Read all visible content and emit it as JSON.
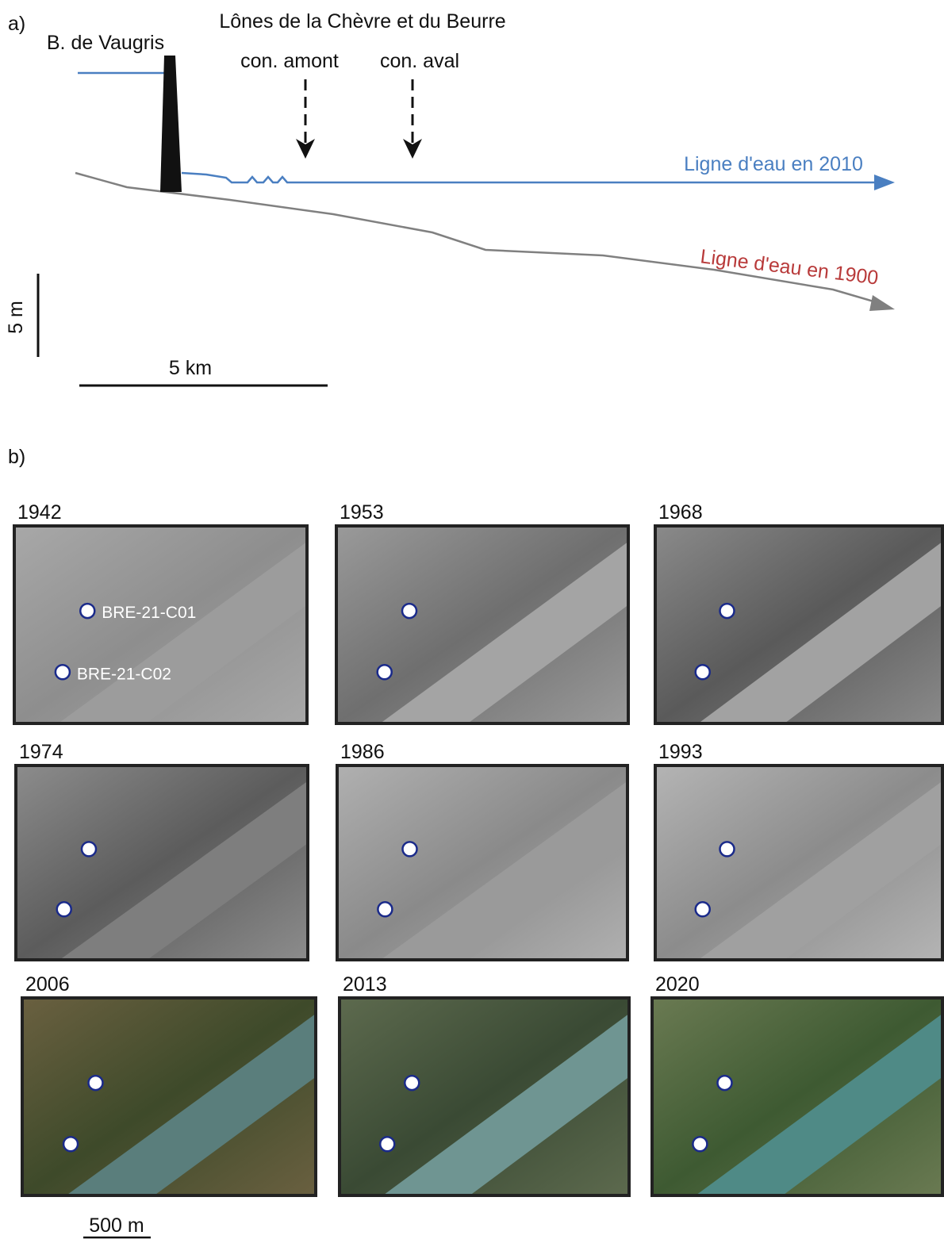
{
  "panel_a": {
    "label": "a)",
    "title": "Lônes de la Chèvre et du Beurre",
    "dam": "B. de Vaugris",
    "upstream": "con. amont",
    "downstream": "con. aval",
    "line_2010": "Ligne d'eau en 2010",
    "line_1900": "Ligne d'eau en 1900",
    "vertical_scale": "5 m",
    "horizontal_scale": "5 km"
  },
  "panel_b": {
    "label": "b)",
    "years": [
      "1942",
      "1953",
      "1968",
      "1974",
      "1986",
      "1993",
      "2006",
      "2013",
      "2020"
    ],
    "point_labels": [
      "BRE-21-C01",
      "BRE-21-C02"
    ],
    "scale": "500 m"
  }
}
